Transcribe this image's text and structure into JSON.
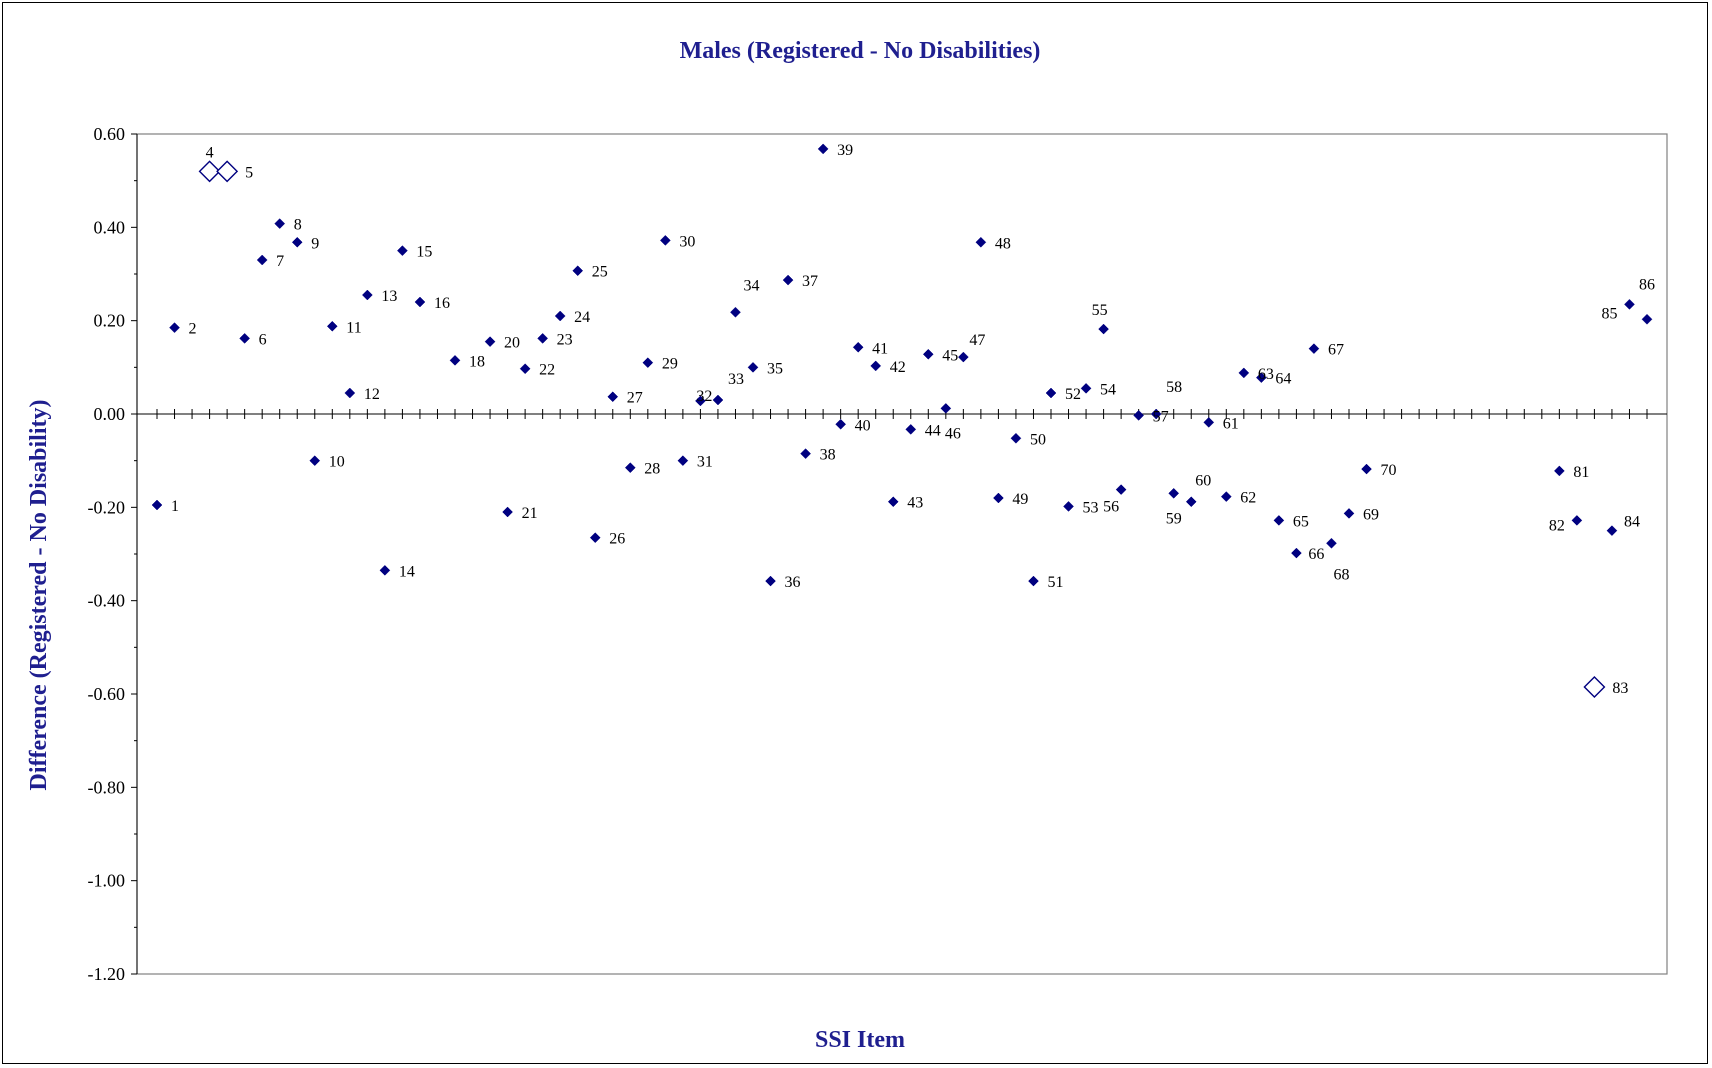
{
  "chart_data": {
    "type": "scatter",
    "title": "Males (Registered - No Disabilities)",
    "xlabel": "SSI Item",
    "ylabel": "Difference (Registered - No Disability)",
    "ylim": [
      -1.2,
      0.6
    ],
    "xlim": [
      0,
      86
    ],
    "yticks": [
      "0.60",
      "0.40",
      "0.20",
      "0.00",
      "-0.20",
      "-0.40",
      "-0.60",
      "-0.80",
      "-1.00",
      "-1.20"
    ],
    "legend": "none",
    "grid": false,
    "colors": {
      "marker": "#000080",
      "title": "#1f1f8f"
    },
    "series": [
      {
        "name": "",
        "points": [
          {
            "item": 1,
            "y": -0.195,
            "label": "1"
          },
          {
            "item": 2,
            "y": 0.185,
            "label": "2"
          },
          {
            "item": 4,
            "y": 0.52,
            "label": "4",
            "flagged": true
          },
          {
            "item": 5,
            "y": 0.52,
            "label": "5",
            "flagged": true
          },
          {
            "item": 6,
            "y": 0.162,
            "label": "6"
          },
          {
            "item": 7,
            "y": 0.33,
            "label": "7"
          },
          {
            "item": 8,
            "y": 0.408,
            "label": "8"
          },
          {
            "item": 9,
            "y": 0.368,
            "label": "9"
          },
          {
            "item": 10,
            "y": -0.1,
            "label": "10"
          },
          {
            "item": 11,
            "y": 0.188,
            "label": "11"
          },
          {
            "item": 12,
            "y": 0.045,
            "label": "12"
          },
          {
            "item": 13,
            "y": 0.255,
            "label": "13"
          },
          {
            "item": 14,
            "y": -0.335,
            "label": "14"
          },
          {
            "item": 15,
            "y": 0.35,
            "label": "15"
          },
          {
            "item": 16,
            "y": 0.24,
            "label": "16"
          },
          {
            "item": 18,
            "y": 0.115,
            "label": "18"
          },
          {
            "item": 20,
            "y": 0.155,
            "label": "20"
          },
          {
            "item": 21,
            "y": -0.21,
            "label": "21"
          },
          {
            "item": 22,
            "y": 0.097,
            "label": "22"
          },
          {
            "item": 23,
            "y": 0.162,
            "label": "23"
          },
          {
            "item": 24,
            "y": 0.21,
            "label": "24"
          },
          {
            "item": 25,
            "y": 0.307,
            "label": "25"
          },
          {
            "item": 26,
            "y": -0.265,
            "label": "26"
          },
          {
            "item": 27,
            "y": 0.037,
            "label": "27"
          },
          {
            "item": 28,
            "y": -0.115,
            "label": "28"
          },
          {
            "item": 29,
            "y": 0.11,
            "label": "29"
          },
          {
            "item": 30,
            "y": 0.372,
            "label": "30"
          },
          {
            "item": 31,
            "y": -0.1,
            "label": "31"
          },
          {
            "item": 32,
            "y": 0.028,
            "label": "32"
          },
          {
            "item": 33,
            "y": 0.03,
            "label": "33"
          },
          {
            "item": 34,
            "y": 0.218,
            "label": "34"
          },
          {
            "item": 35,
            "y": 0.1,
            "label": "35"
          },
          {
            "item": 36,
            "y": -0.358,
            "label": "36"
          },
          {
            "item": 37,
            "y": 0.287,
            "label": "37"
          },
          {
            "item": 38,
            "y": -0.085,
            "label": "38"
          },
          {
            "item": 39,
            "y": 0.568,
            "label": "39"
          },
          {
            "item": 40,
            "y": -0.022,
            "label": "40"
          },
          {
            "item": 41,
            "y": 0.143,
            "label": "41"
          },
          {
            "item": 42,
            "y": 0.103,
            "label": "42"
          },
          {
            "item": 43,
            "y": -0.188,
            "label": "43"
          },
          {
            "item": 44,
            "y": -0.033,
            "label": "44"
          },
          {
            "item": 45,
            "y": 0.128,
            "label": "45"
          },
          {
            "item": 46,
            "y": 0.012,
            "label": "46"
          },
          {
            "item": 47,
            "y": 0.122,
            "label": "47"
          },
          {
            "item": 48,
            "y": 0.368,
            "label": "48"
          },
          {
            "item": 49,
            "y": -0.18,
            "label": "49"
          },
          {
            "item": 50,
            "y": -0.052,
            "label": "50"
          },
          {
            "item": 51,
            "y": -0.358,
            "label": "51"
          },
          {
            "item": 52,
            "y": 0.045,
            "label": "52"
          },
          {
            "item": 53,
            "y": -0.198,
            "label": "53"
          },
          {
            "item": 54,
            "y": 0.055,
            "label": "54"
          },
          {
            "item": 55,
            "y": 0.182,
            "label": "55"
          },
          {
            "item": 56,
            "y": -0.162,
            "label": "56"
          },
          {
            "item": 57,
            "y": -0.003,
            "label": "57"
          },
          {
            "item": 58,
            "y": 0.0,
            "label": "58"
          },
          {
            "item": 59,
            "y": -0.17,
            "label": "59"
          },
          {
            "item": 60,
            "y": -0.188,
            "label": "60"
          },
          {
            "item": 61,
            "y": -0.018,
            "label": "61"
          },
          {
            "item": 62,
            "y": -0.177,
            "label": "62"
          },
          {
            "item": 63,
            "y": 0.088,
            "label": "63"
          },
          {
            "item": 64,
            "y": 0.078,
            "label": "64"
          },
          {
            "item": 65,
            "y": -0.228,
            "label": "65"
          },
          {
            "item": 66,
            "y": -0.298,
            "label": "66"
          },
          {
            "item": 67,
            "y": 0.14,
            "label": "67"
          },
          {
            "item": 68,
            "y": -0.277,
            "label": "68"
          },
          {
            "item": 69,
            "y": -0.213,
            "label": "69"
          },
          {
            "item": 70,
            "y": -0.118,
            "label": "70"
          },
          {
            "item": 81,
            "y": -0.122,
            "label": "81"
          },
          {
            "item": 82,
            "y": -0.228,
            "label": "82"
          },
          {
            "item": 83,
            "y": -0.585,
            "label": "83",
            "flagged": true
          },
          {
            "item": 84,
            "y": -0.25,
            "label": "84"
          },
          {
            "item": 85,
            "y": 0.235,
            "label": "85"
          },
          {
            "item": 86,
            "y": 0.203,
            "label": "86"
          }
        ]
      }
    ]
  }
}
